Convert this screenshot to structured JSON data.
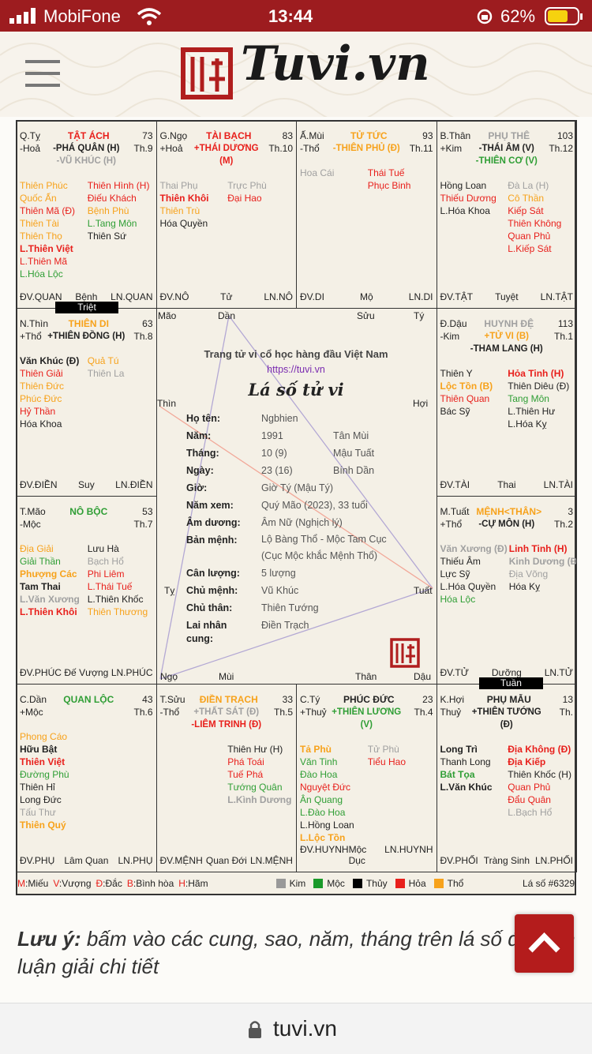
{
  "status_bar": {
    "carrier": "MobiFone",
    "time": "13:44",
    "battery": "62%"
  },
  "header": {
    "logo": "Tuvi.vn"
  },
  "palaces": [
    {
      "code": "Q.Tỵ",
      "element": "-Hoả",
      "name": "TẬT ÁCH",
      "name_color": "#e8201c",
      "number": 73,
      "main": [
        [
          "-PHÁ QUÂN (H)",
          "#222222"
        ],
        [
          "-VŨ KHÚC (H)",
          "#a0a0a0"
        ]
      ],
      "age": "Th.9",
      "left": [
        [
          "Thiên Phúc",
          "#f7a21b"
        ],
        [
          "Quốc Ấn",
          "#f7a21b"
        ],
        [
          "Thiên Mã (Đ)",
          "#e8201c"
        ],
        [
          "Thiên Tài",
          "#f7a21b"
        ],
        [
          "Thiên Thọ",
          "#f7a21b"
        ],
        [
          "L.Thiên Việt",
          "#e8201c",
          true
        ],
        [
          "L.Thiên Mã",
          "#e8201c"
        ],
        [
          "L.Hóa Lộc",
          "#2f9e35"
        ]
      ],
      "right": [
        [
          "Thiên Hình (H)",
          "#e8201c"
        ],
        [
          "Điếu Khách",
          "#e8201c"
        ],
        [
          "Bệnh Phù",
          "#f7a21b"
        ],
        [
          "L.Tang Môn",
          "#2f9e35"
        ],
        [
          "Thiên Sứ",
          "#222222"
        ]
      ],
      "bottom": [
        "ĐV.QUAN",
        "Bệnh",
        "LN.QUAN"
      ]
    },
    {
      "code": "G.Ngọ",
      "element": "+Hoả",
      "name": "TÀI BẠCH",
      "name_color": "#e8201c",
      "number": 83,
      "main": [
        [
          "+THÁI DƯƠNG (M)",
          "#e8201c"
        ]
      ],
      "age": "Th.10",
      "left": [
        [
          "Thai Phụ",
          "#a0a0a0"
        ],
        [
          "Thiên Khôi",
          "#e8201c",
          true
        ],
        [
          "Thiên Trù",
          "#f7a21b"
        ],
        [
          "Hóa Quyền",
          "#222222"
        ]
      ],
      "right": [
        [
          "Trực Phù",
          "#a0a0a0"
        ],
        [
          "Đại Hao",
          "#e8201c"
        ]
      ],
      "bottom": [
        "ĐV.NÔ",
        "Tử",
        "LN.NÔ"
      ]
    },
    {
      "code": "Ấ.Mùi",
      "element": "-Thổ",
      "name": "TỬ TỨC",
      "name_color": "#f7a21b",
      "number": 93,
      "main": [
        [
          "-THIÊN PHỦ (Đ)",
          "#f7a21b"
        ]
      ],
      "age": "Th.11",
      "left": [
        [
          "Hoa Cái",
          "#a0a0a0"
        ]
      ],
      "right": [
        [
          "Thái Tuế",
          "#e8201c"
        ],
        [
          "Phục Binh",
          "#e8201c"
        ]
      ],
      "bottom": [
        "ĐV.DI",
        "Mộ",
        "LN.DI"
      ]
    },
    {
      "code": "B.Thân",
      "element": "+Kim",
      "name": "PHỤ THÊ",
      "name_color": "#a0a0a0",
      "number": 103,
      "main": [
        [
          "-THÁI ÂM (V)",
          "#222222"
        ],
        [
          "-THIÊN CƠ (V)",
          "#2f9e35"
        ]
      ],
      "age": "Th.12",
      "left": [
        [
          "Hồng Loan",
          "#222222"
        ],
        [
          "Thiếu Dương",
          "#e8201c"
        ],
        [
          "L.Hóa Khoa",
          "#222222"
        ]
      ],
      "right": [
        [
          "Đà La (H)",
          "#a0a0a0"
        ],
        [
          "Cô Thần",
          "#f7a21b"
        ],
        [
          "Kiếp Sát",
          "#e8201c"
        ],
        [
          "Thiên Không",
          "#e8201c"
        ],
        [
          "Quan Phủ",
          "#e8201c"
        ],
        [
          "L.Kiếp Sát",
          "#e8201c"
        ]
      ],
      "bottom": [
        "ĐV.TẬT",
        "Tuyệt",
        "LN.TẬT"
      ]
    },
    {
      "code": "N.Thìn",
      "element": "+Thổ",
      "name": "THIÊN DI",
      "name_color": "#f7a21b",
      "number": 63,
      "main": [
        [
          "+THIÊN ĐỒNG (H)",
          "#222222"
        ]
      ],
      "age": "Th.8",
      "left": [
        [
          "Văn Khúc (Đ)",
          "#222222",
          true
        ],
        [
          "Thiên Giải",
          "#e8201c"
        ],
        [
          "Thiên Đức",
          "#f7a21b"
        ],
        [
          "Phúc Đức",
          "#f7a21b"
        ],
        [
          "Hỷ Thần",
          "#e8201c"
        ],
        [
          "Hóa Khoa",
          "#222222"
        ]
      ],
      "right": [
        [
          "Quả Tú",
          "#f7a21b"
        ],
        [
          "Thiên La",
          "#a0a0a0"
        ]
      ],
      "bottom": [
        "ĐV.ĐIỀN",
        "Suy",
        "LN.ĐIỀN"
      ]
    },
    {
      "code": "Đ.Dậu",
      "element": "-Kim",
      "name": "HUYNH ĐỆ",
      "name_color": "#a0a0a0",
      "number": 113,
      "main": [
        [
          "+TỬ VI (B)",
          "#f7a21b"
        ],
        [
          "-THAM LANG (H)",
          "#222222"
        ]
      ],
      "age": "Th.1",
      "left": [
        [
          "Thiên Y",
          "#222222"
        ],
        [
          "Lộc Tồn (B)",
          "#f7a21b",
          true
        ],
        [
          "Thiên Quan",
          "#e8201c"
        ],
        [
          "Bác Sỹ",
          "#222222"
        ]
      ],
      "right": [
        [
          "Hỏa Tinh (H)",
          "#e8201c",
          true
        ],
        [
          "Thiên Diêu (Đ)",
          "#222222"
        ],
        [
          "Tang Môn",
          "#2f9e35"
        ],
        [
          "L.Thiên Hư",
          "#222222"
        ],
        [
          "L.Hóa Kỵ",
          "#222222"
        ]
      ],
      "bottom": [
        "ĐV.TÀI",
        "Thai",
        "LN.TÀI"
      ]
    },
    {
      "code": "T.Mão",
      "element": "-Mộc",
      "name": "NÔ BỘC",
      "name_color": "#2f9e35",
      "number": 53,
      "main": [],
      "age": "Th.7",
      "left": [
        [
          "Địa Giải",
          "#f7a21b"
        ],
        [
          "Giải Thần",
          "#2f9e35"
        ],
        [
          "Phượng Các",
          "#f7a21b",
          true
        ],
        [
          "Tam Thai",
          "#222222",
          true
        ],
        [
          "L.Văn Xương",
          "#a0a0a0",
          true
        ],
        [
          "L.Thiên Khôi",
          "#e8201c",
          true
        ]
      ],
      "right": [
        [
          "Lưu Hà",
          "#222222"
        ],
        [
          "Bạch Hổ",
          "#a0a0a0"
        ],
        [
          "Phi Liêm",
          "#e8201c"
        ],
        [
          "L.Thái Tuế",
          "#e8201c"
        ],
        [
          "L.Thiên Khốc",
          "#222222"
        ],
        [
          "Thiên Thương",
          "#f7a21b"
        ]
      ],
      "bottom": [
        "ĐV.PHÚC",
        "Đế Vượng",
        "LN.PHÚC"
      ]
    },
    {
      "code": "M.Tuất",
      "element": "+Thổ",
      "name": "MỆNH<THÂN>",
      "name_color": "#f7a21b",
      "number": 3,
      "main": [
        [
          "-CỰ MÔN (H)",
          "#222222"
        ]
      ],
      "age": "Th.2",
      "left": [
        [
          "Văn Xương (Đ)",
          "#a0a0a0",
          true
        ],
        [
          "Thiếu Âm",
          "#222222"
        ],
        [
          "Lực Sỹ",
          "#222222"
        ],
        [
          "L.Hóa Quyền",
          "#222222"
        ],
        [
          "Hóa Lộc",
          "#2f9e35"
        ]
      ],
      "right": [
        [
          "Linh Tinh (H)",
          "#e8201c",
          true
        ],
        [
          "Kinh Dương (Đ)",
          "#a0a0a0",
          true
        ],
        [
          "Địa Võng",
          "#a0a0a0"
        ],
        [
          "Hóa Kỵ",
          "#222222"
        ]
      ],
      "bottom": [
        "ĐV.TỬ",
        "Dưỡng",
        "LN.TỬ"
      ]
    },
    {
      "code": "C.Dần",
      "element": "+Mộc",
      "name": "QUAN LỘC",
      "name_color": "#2f9e35",
      "number": 43,
      "main": [],
      "age": "Th.6",
      "left": [
        [
          "Phong Cáo",
          "#f7a21b"
        ],
        [
          "Hữu Bật",
          "#222222",
          true
        ],
        [
          "Thiên Việt",
          "#e8201c",
          true
        ],
        [
          "Đường Phù",
          "#2f9e35"
        ],
        [
          "Thiên Hỉ",
          "#222222"
        ],
        [
          "Long Đức",
          "#222222"
        ],
        [
          "Tấu Thư",
          "#a0a0a0"
        ],
        [
          "Thiên Quý",
          "#f7a21b",
          true
        ]
      ],
      "right": [],
      "bottom": [
        "ĐV.PHỤ",
        "Lâm Quan",
        "LN.PHỤ"
      ]
    },
    {
      "code": "T.Sửu",
      "element": "-Thổ",
      "name": "ĐIỀN TRẠCH",
      "name_color": "#f7a21b",
      "number": 33,
      "main": [
        [
          "+THẤT SÁT (Đ)",
          "#a0a0a0"
        ],
        [
          "-LIÊM TRINH (Đ)",
          "#e8201c"
        ]
      ],
      "age": "Th.5",
      "left": [],
      "right": [
        [
          "Thiên Hư (H)",
          "#222222"
        ],
        [
          "Phá Toái",
          "#e8201c"
        ],
        [
          "Tuế Phá",
          "#e8201c"
        ],
        [
          "Tướng Quân",
          "#2f9e35"
        ],
        [
          "L.Kình Dương",
          "#a0a0a0",
          true
        ]
      ],
      "bottom": [
        "ĐV.MỆNH",
        "Quan Đới",
        "LN.MỆNH"
      ]
    },
    {
      "code": "C.Tý",
      "element": "+Thuỷ",
      "name": "PHÚC ĐỨC",
      "name_color": "#222222",
      "number": 23,
      "main": [
        [
          "+THIÊN LƯƠNG (V)",
          "#2f9e35"
        ]
      ],
      "age": "Th.4",
      "left": [
        [
          "Tả Phù",
          "#f7a21b",
          true
        ],
        [
          "Văn Tinh",
          "#2f9e35"
        ],
        [
          "Đào Hoa",
          "#2f9e35"
        ],
        [
          "Nguyệt Đức",
          "#e8201c"
        ],
        [
          "Ân Quang",
          "#2f9e35"
        ],
        [
          "L.Đào Hoa",
          "#2f9e35"
        ],
        [
          "L.Hồng Loan",
          "#222222"
        ],
        [
          "L.Lộc Tồn",
          "#f7a21b",
          true
        ]
      ],
      "right": [
        [
          "Tử Phù",
          "#a0a0a0"
        ],
        [
          "Tiểu Hao",
          "#e8201c"
        ]
      ],
      "bottom": [
        "ĐV.HUYNH",
        "Mộc Dục",
        "LN.HUYNH"
      ]
    },
    {
      "code": "K.Hợi",
      "element": "Thuỷ",
      "name": "PHỤ MẪU",
      "name_color": "#222222",
      "number": 13,
      "main": [
        [
          "+THIÊN TƯỚNG (Đ)",
          "#222222"
        ]
      ],
      "age": "Th.",
      "left": [
        [
          "Long Trì",
          "#222222",
          true
        ],
        [
          "Thanh Long",
          "#222222"
        ],
        [
          "Bát Tọa",
          "#2f9e35",
          true
        ],
        [
          "L.Văn Khúc",
          "#222222",
          true
        ]
      ],
      "right": [
        [
          "Địa Không (Đ)",
          "#e8201c",
          true
        ],
        [
          "Địa Kiếp",
          "#e8201c",
          true
        ],
        [
          "Thiên Khốc (H)",
          "#222222"
        ],
        [
          "Quan Phủ",
          "#e8201c"
        ],
        [
          "Đẩu Quân",
          "#e8201c"
        ],
        [
          "L.Bạch Hổ",
          "#a0a0a0"
        ]
      ],
      "bottom": [
        "ĐV.PHỐI",
        "Tràng Sinh",
        "LN.PHỐI"
      ]
    }
  ],
  "markers": [
    "Triệt",
    "Tuần"
  ],
  "center": {
    "slogan": "Trang tử vi cổ học hàng đầu Việt Nam",
    "url": "https://tuvi.vn",
    "title": "Lá số tử vi",
    "corners": [
      "Mão",
      "Dần",
      "Sửu",
      "Tý",
      "Thìn",
      "Hợi",
      "Tỵ",
      "Tuất",
      "Ngọ",
      "Mùi",
      "Thân",
      "Dậu"
    ],
    "info": [
      {
        "label": "Họ tên:",
        "value": "Ngbhien"
      },
      {
        "label": "Năm:",
        "value": "1991",
        "extra": "Tân Mùi"
      },
      {
        "label": "Tháng:",
        "value": "10 (9)",
        "extra": "Mậu Tuất"
      },
      {
        "label": "Ngày:",
        "value": "23 (16)",
        "extra": "Bính Dần"
      },
      {
        "label": "Giờ:",
        "value": "Giờ Tý (Mậu Tý)"
      },
      {
        "label": "Năm xem:",
        "value": "Quý Mão (2023), 33 tuổi"
      },
      {
        "label": "Âm dương:",
        "value": "Âm Nữ (Nghịch lý)"
      },
      {
        "label": "Bản mệnh:",
        "value": "Lộ Bàng Thổ - Mộc Tam Cục",
        "line2": "(Cục Mộc khắc Mệnh Thổ)"
      },
      {
        "label": "Cân lượng:",
        "value": "5 lượng"
      },
      {
        "label": "Chủ mệnh:",
        "value": "Vũ Khúc"
      },
      {
        "label": "Chủ thân:",
        "value": "Thiên Tướng"
      },
      {
        "label": "Lai nhân cung:",
        "value": "Điền Trạch"
      }
    ]
  },
  "legend": {
    "statuses": [
      [
        "M",
        ":Miếu"
      ],
      [
        "V",
        ":Vượng"
      ],
      [
        "Đ",
        ":Đắc"
      ],
      [
        "B",
        ":Bình hòa"
      ],
      [
        "H",
        ":Hãm"
      ]
    ],
    "elements": [
      [
        "Kim",
        "#999999"
      ],
      [
        "Mộc",
        "#1a9a2a"
      ],
      [
        "Thủy",
        "#000000"
      ],
      [
        "Hỏa",
        "#e8201c"
      ],
      [
        "Thổ",
        "#f7a21b"
      ]
    ],
    "chart_no": "Lá số #6329"
  },
  "note": {
    "label": "Lưu ý:",
    "text": "bấm vào các cung, sao, năm, tháng trên lá số để xem luận giải chi tiết"
  },
  "browser": {
    "url": "tuvi.vn"
  }
}
